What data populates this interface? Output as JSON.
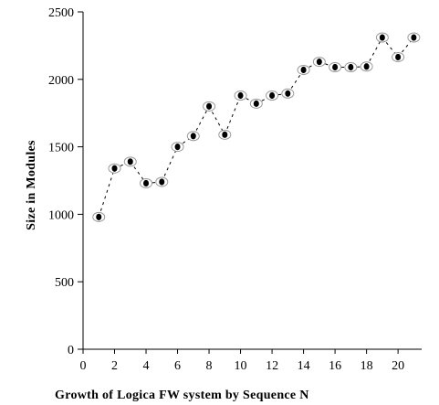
{
  "chart_data": {
    "type": "scatter",
    "title": "",
    "xlabel": "Growth of Logica FW system by Sequence N",
    "ylabel": "Size in Modules",
    "xlim": [
      0,
      21.5
    ],
    "ylim": [
      0,
      2500
    ],
    "x_ticks": [
      0,
      2,
      4,
      6,
      8,
      10,
      12,
      14,
      16,
      18,
      20
    ],
    "y_ticks": [
      0,
      500,
      1000,
      1500,
      2000,
      2500
    ],
    "grid": false,
    "legend": "none",
    "series": [
      {
        "x": [
          1,
          2,
          3,
          4,
          5,
          6,
          7,
          8,
          9,
          10,
          11,
          12,
          13,
          14,
          15,
          16,
          17,
          18,
          19,
          20,
          21
        ],
        "y": [
          980,
          1340,
          1390,
          1230,
          1240,
          1500,
          1580,
          1800,
          1590,
          1880,
          1820,
          1880,
          1895,
          2070,
          2130,
          2090,
          2090,
          2095,
          2310,
          2165,
          2310
        ]
      }
    ]
  }
}
